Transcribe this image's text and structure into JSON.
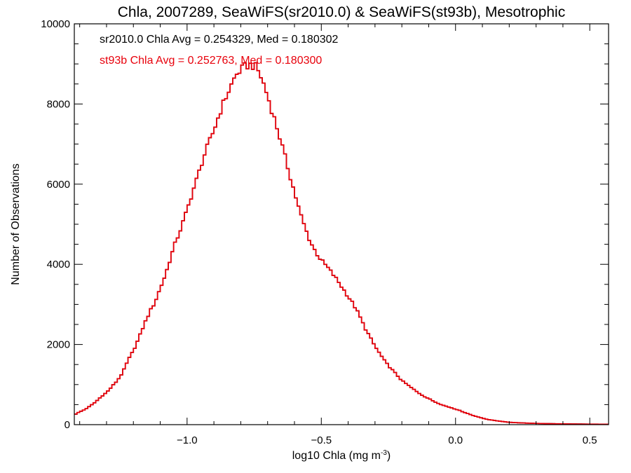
{
  "chart_data": {
    "type": "histogram-step",
    "title": "Chla, 2007289, SeaWiFS(sr2010.0) & SeaWiFS(st93b), Mesotrophic",
    "xlabel": "log10 Chla (mg m",
    "xlabel_sup": "-3",
    "xlabel_close": ")",
    "ylabel": "Number of Observations",
    "xlim": [
      -1.42,
      0.57
    ],
    "ylim": [
      0,
      10000
    ],
    "xticks": [
      {
        "value": -1.0,
        "label": "−1.0"
      },
      {
        "value": -0.5,
        "label": "−0.5"
      },
      {
        "value": 0.0,
        "label": "0.0"
      },
      {
        "value": 0.5,
        "label": "0.5"
      }
    ],
    "xminor_step": 0.1,
    "yticks": [
      {
        "value": 0,
        "label": "0"
      },
      {
        "value": 2000,
        "label": "2000"
      },
      {
        "value": 4000,
        "label": "4000"
      },
      {
        "value": 6000,
        "label": "6000"
      },
      {
        "value": 8000,
        "label": "8000"
      },
      {
        "value": 10000,
        "label": "10000"
      }
    ],
    "yminor_step": 500,
    "grid": false,
    "annotations": [
      {
        "text": "sr2010.0 Chla Avg = 0.254329, Med = 0.180302",
        "color": "#000000"
      },
      {
        "text": "st93b Chla Avg = 0.252763, Med = 0.180300",
        "color": "#e8000b"
      }
    ],
    "series": [
      {
        "color": "#e8000b",
        "bin_width": 0.01,
        "points": [
          [
            -1.42,
            250
          ],
          [
            -1.4,
            320
          ],
          [
            -1.38,
            380
          ],
          [
            -1.36,
            470
          ],
          [
            -1.34,
            570
          ],
          [
            -1.32,
            700
          ],
          [
            -1.3,
            800
          ],
          [
            -1.28,
            950
          ],
          [
            -1.26,
            1100
          ],
          [
            -1.24,
            1300
          ],
          [
            -1.22,
            1600
          ],
          [
            -1.2,
            1850
          ],
          [
            -1.18,
            2150
          ],
          [
            -1.16,
            2500
          ],
          [
            -1.14,
            2800
          ],
          [
            -1.12,
            3050
          ],
          [
            -1.1,
            3400
          ],
          [
            -1.08,
            3750
          ],
          [
            -1.06,
            4200
          ],
          [
            -1.04,
            4600
          ],
          [
            -1.02,
            4950
          ],
          [
            -1.0,
            5350
          ],
          [
            -0.98,
            5800
          ],
          [
            -0.96,
            6200
          ],
          [
            -0.94,
            6650
          ],
          [
            -0.92,
            7000
          ],
          [
            -0.9,
            7350
          ],
          [
            -0.88,
            7750
          ],
          [
            -0.86,
            8100
          ],
          [
            -0.84,
            8400
          ],
          [
            -0.82,
            8700
          ],
          [
            -0.8,
            8850
          ],
          [
            -0.78,
            8950
          ],
          [
            -0.76,
            8980
          ],
          [
            -0.74,
            8900
          ],
          [
            -0.72,
            8600
          ],
          [
            -0.7,
            8200
          ],
          [
            -0.68,
            7750
          ],
          [
            -0.66,
            7300
          ],
          [
            -0.64,
            6800
          ],
          [
            -0.62,
            6300
          ],
          [
            -0.6,
            5800
          ],
          [
            -0.58,
            5300
          ],
          [
            -0.56,
            4900
          ],
          [
            -0.54,
            4550
          ],
          [
            -0.52,
            4300
          ],
          [
            -0.5,
            4100
          ],
          [
            -0.48,
            3950
          ],
          [
            -0.46,
            3780
          ],
          [
            -0.44,
            3600
          ],
          [
            -0.42,
            3400
          ],
          [
            -0.4,
            3200
          ],
          [
            -0.38,
            3000
          ],
          [
            -0.36,
            2750
          ],
          [
            -0.34,
            2450
          ],
          [
            -0.32,
            2200
          ],
          [
            -0.3,
            1950
          ],
          [
            -0.28,
            1750
          ],
          [
            -0.26,
            1550
          ],
          [
            -0.24,
            1400
          ],
          [
            -0.22,
            1250
          ],
          [
            -0.2,
            1100
          ],
          [
            -0.18,
            1000
          ],
          [
            -0.16,
            900
          ],
          [
            -0.14,
            800
          ],
          [
            -0.12,
            720
          ],
          [
            -0.1,
            650
          ],
          [
            -0.08,
            580
          ],
          [
            -0.06,
            520
          ],
          [
            -0.04,
            470
          ],
          [
            -0.02,
            430
          ],
          [
            0.0,
            390
          ],
          [
            0.02,
            340
          ],
          [
            0.04,
            290
          ],
          [
            0.06,
            240
          ],
          [
            0.08,
            200
          ],
          [
            0.1,
            160
          ],
          [
            0.12,
            130
          ],
          [
            0.14,
            110
          ],
          [
            0.16,
            90
          ],
          [
            0.18,
            75
          ],
          [
            0.2,
            60
          ],
          [
            0.24,
            45
          ],
          [
            0.28,
            35
          ],
          [
            0.34,
            25
          ],
          [
            0.4,
            20
          ],
          [
            0.46,
            15
          ],
          [
            0.52,
            12
          ],
          [
            0.57,
            10
          ]
        ]
      },
      {
        "color": "#000000",
        "bin_width": 0.01,
        "points": [
          [
            -1.42,
            245
          ],
          [
            -1.4,
            318
          ],
          [
            -1.38,
            378
          ],
          [
            -1.36,
            468
          ],
          [
            -1.34,
            572
          ],
          [
            -1.32,
            698
          ],
          [
            -1.3,
            802
          ],
          [
            -1.28,
            948
          ],
          [
            -1.26,
            1102
          ],
          [
            -1.24,
            1298
          ],
          [
            -1.22,
            1602
          ],
          [
            -1.2,
            1848
          ],
          [
            -1.18,
            2152
          ],
          [
            -1.16,
            2498
          ],
          [
            -1.14,
            2802
          ],
          [
            -1.12,
            3048
          ],
          [
            -1.1,
            3402
          ],
          [
            -1.08,
            3748
          ],
          [
            -1.06,
            4202
          ],
          [
            -1.04,
            4598
          ],
          [
            -1.02,
            4952
          ],
          [
            -1.0,
            5348
          ],
          [
            -0.98,
            5802
          ],
          [
            -0.96,
            6198
          ],
          [
            -0.94,
            6652
          ],
          [
            -0.92,
            6998
          ],
          [
            -0.9,
            7352
          ],
          [
            -0.88,
            7748
          ],
          [
            -0.86,
            8102
          ],
          [
            -0.84,
            8398
          ],
          [
            -0.82,
            8702
          ],
          [
            -0.8,
            8848
          ],
          [
            -0.78,
            8952
          ],
          [
            -0.76,
            8978
          ],
          [
            -0.74,
            8902
          ],
          [
            -0.72,
            8598
          ],
          [
            -0.7,
            8202
          ],
          [
            -0.68,
            7748
          ],
          [
            -0.66,
            7302
          ],
          [
            -0.64,
            6798
          ],
          [
            -0.62,
            6302
          ],
          [
            -0.6,
            5798
          ],
          [
            -0.58,
            5302
          ],
          [
            -0.56,
            4898
          ],
          [
            -0.54,
            4552
          ],
          [
            -0.52,
            4298
          ],
          [
            -0.5,
            4102
          ],
          [
            -0.48,
            3948
          ],
          [
            -0.46,
            3782
          ],
          [
            -0.44,
            3598
          ],
          [
            -0.42,
            3402
          ],
          [
            -0.4,
            3198
          ],
          [
            -0.38,
            3002
          ],
          [
            -0.36,
            2748
          ],
          [
            -0.34,
            2452
          ],
          [
            -0.32,
            2198
          ],
          [
            -0.3,
            1952
          ],
          [
            -0.28,
            1748
          ],
          [
            -0.26,
            1552
          ],
          [
            -0.24,
            1398
          ],
          [
            -0.22,
            1252
          ],
          [
            -0.2,
            1098
          ],
          [
            -0.18,
            1002
          ],
          [
            -0.16,
            898
          ],
          [
            -0.14,
            802
          ],
          [
            -0.12,
            718
          ],
          [
            -0.1,
            652
          ],
          [
            -0.08,
            578
          ],
          [
            -0.06,
            522
          ],
          [
            -0.04,
            468
          ],
          [
            -0.02,
            432
          ],
          [
            0.0,
            388
          ],
          [
            0.02,
            342
          ],
          [
            0.04,
            288
          ],
          [
            0.06,
            242
          ],
          [
            0.08,
            198
          ],
          [
            0.1,
            162
          ],
          [
            0.12,
            128
          ],
          [
            0.14,
            112
          ],
          [
            0.16,
            88
          ],
          [
            0.18,
            76
          ],
          [
            0.2,
            58
          ],
          [
            0.24,
            46
          ],
          [
            0.28,
            34
          ],
          [
            0.34,
            26
          ],
          [
            0.4,
            19
          ],
          [
            0.46,
            16
          ],
          [
            0.52,
            11
          ],
          [
            0.57,
            10
          ]
        ]
      }
    ]
  }
}
